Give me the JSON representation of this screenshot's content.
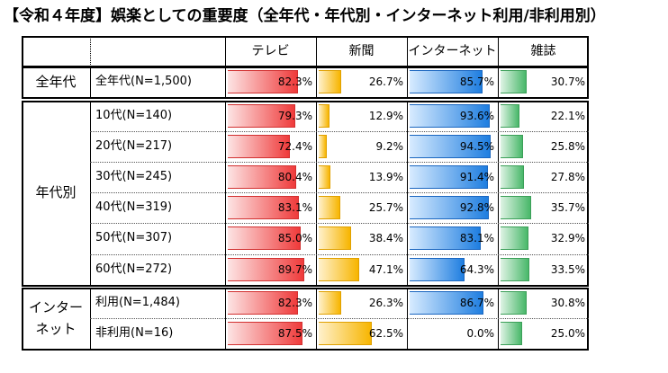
{
  "title": "【令和４年度】娯楽としての重要度（全年代・年代別・インターネット利用/非利用別）",
  "chart_data": {
    "type": "table",
    "columns": [
      {
        "key": "tv",
        "label": "テレビ",
        "color": "#ef3b3b",
        "light": "#fde4e4",
        "edge": "#d23030"
      },
      {
        "key": "paper",
        "label": "新聞",
        "color": "#f7b500",
        "light": "#fff1cc",
        "edge": "#e0a000"
      },
      {
        "key": "net",
        "label": "インターネット",
        "color": "#1f7ee0",
        "light": "#d7ebff",
        "edge": "#1a66c0"
      },
      {
        "key": "mag",
        "label": "雑誌",
        "color": "#49b86a",
        "light": "#def3e4",
        "edge": "#3b9f58"
      }
    ],
    "groups": [
      {
        "label": "全年代",
        "rows": [
          {
            "label": "全年代(N=1,500)",
            "values": [
              82.3,
              26.7,
              85.7,
              30.7
            ]
          }
        ]
      },
      {
        "label": "年代別",
        "rows": [
          {
            "label": "10代(N=140)",
            "values": [
              79.3,
              12.9,
              93.6,
              22.1
            ]
          },
          {
            "label": "20代(N=217)",
            "values": [
              72.4,
              9.2,
              94.5,
              25.8
            ]
          },
          {
            "label": "30代(N=245)",
            "values": [
              80.4,
              13.9,
              91.4,
              27.8
            ]
          },
          {
            "label": "40代(N=319)",
            "values": [
              83.1,
              25.7,
              92.8,
              35.7
            ]
          },
          {
            "label": "50代(N=307)",
            "values": [
              85.0,
              38.4,
              83.1,
              32.9
            ]
          },
          {
            "label": "60代(N=272)",
            "values": [
              89.7,
              47.1,
              64.3,
              33.5
            ]
          }
        ]
      },
      {
        "label": "インター\nネット",
        "rows": [
          {
            "label": "利用(N=1,484)",
            "values": [
              82.3,
              26.3,
              86.7,
              30.8
            ]
          },
          {
            "label": "非利用(N=16)",
            "values": [
              87.5,
              62.5,
              0.0,
              25.0
            ]
          }
        ]
      }
    ],
    "value_format": "0.0%"
  }
}
